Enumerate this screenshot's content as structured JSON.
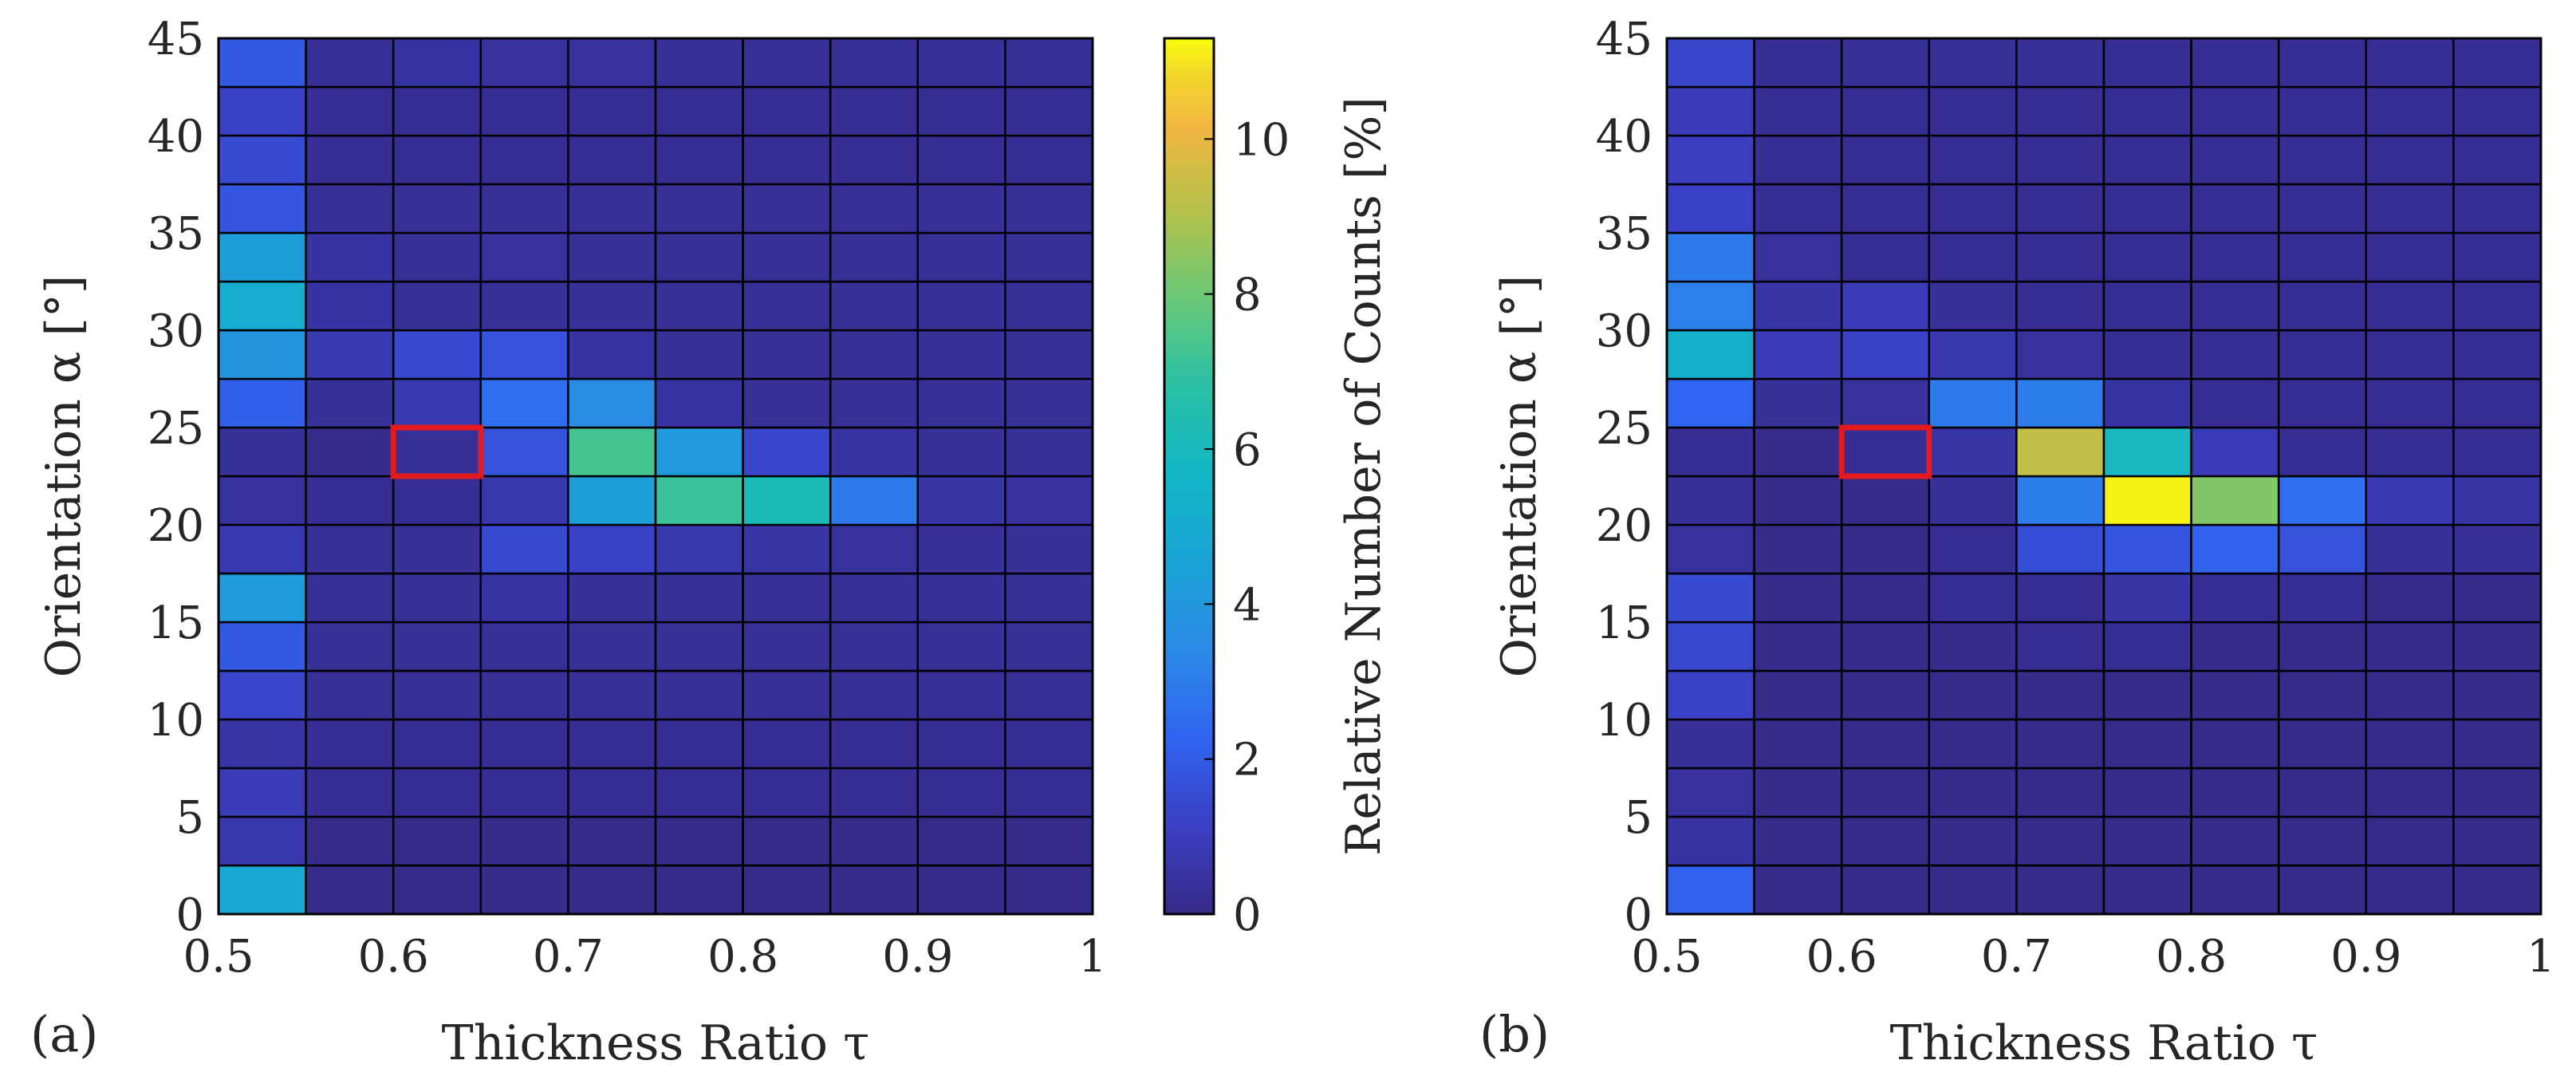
{
  "chart_data": [
    {
      "type": "heatmap",
      "panel_label": "(a)",
      "xlabel": "Thickness Ratio τ",
      "ylabel": "Orientation α [°]",
      "xlim": [
        0.5,
        1.0
      ],
      "ylim": [
        0,
        45
      ],
      "x_bin_width": 0.05,
      "y_bin_width": 2.5,
      "xticks": [
        "0.5",
        "0.6",
        "0.7",
        "0.8",
        "0.9",
        "1"
      ],
      "yticks": [
        "0",
        "5",
        "10",
        "15",
        "20",
        "25",
        "30",
        "35",
        "40",
        "45"
      ],
      "highlight": {
        "x": [
          0.6,
          0.65
        ],
        "y": [
          22.5,
          25
        ],
        "color": "#e41a1c"
      },
      "values_note": "rows from alpha 0-2.5 (bottom) to 42.5-45 (top); columns tau 0.50-0.55 ... 0.95-1.00; relative counts in %",
      "values": [
        [
          4.8,
          0.1,
          0.1,
          0.1,
          0.1,
          0.1,
          0.1,
          0.1,
          0.1,
          0.1
        ],
        [
          0.7,
          0.1,
          0.1,
          0.1,
          0.1,
          0.1,
          0.1,
          0.1,
          0.1,
          0.1
        ],
        [
          0.9,
          0.2,
          0.2,
          0.2,
          0.2,
          0.2,
          0.2,
          0.2,
          0.2,
          0.2
        ],
        [
          0.6,
          0.2,
          0.2,
          0.2,
          0.2,
          0.2,
          0.2,
          0.2,
          0.2,
          0.2
        ],
        [
          1.3,
          0.3,
          0.3,
          0.3,
          0.3,
          0.3,
          0.3,
          0.3,
          0.3,
          0.3
        ],
        [
          1.9,
          0.3,
          0.3,
          0.3,
          0.3,
          0.3,
          0.3,
          0.3,
          0.3,
          0.3
        ],
        [
          4.2,
          0.3,
          0.3,
          0.5,
          0.3,
          0.3,
          0.3,
          0.3,
          0.3,
          0.3
        ],
        [
          0.8,
          0.3,
          0.3,
          1.5,
          1.2,
          0.7,
          0.6,
          0.4,
          0.3,
          0.3
        ],
        [
          0.4,
          0.2,
          0.2,
          0.7,
          4.3,
          7.1,
          6.1,
          2.9,
          0.6,
          0.4
        ],
        [
          0.3,
          0.1,
          0.3,
          1.7,
          7.3,
          4.1,
          1.3,
          0.5,
          0.3,
          0.3
        ],
        [
          2.1,
          0.3,
          0.8,
          2.6,
          3.5,
          0.5,
          0.3,
          0.3,
          0.3,
          0.3
        ],
        [
          3.9,
          0.8,
          1.5,
          1.7,
          0.5,
          0.3,
          0.3,
          0.3,
          0.3,
          0.3
        ],
        [
          5.1,
          0.5,
          0.3,
          0.3,
          0.3,
          0.3,
          0.3,
          0.3,
          0.3,
          0.3
        ],
        [
          4.3,
          0.5,
          0.3,
          0.4,
          0.3,
          0.3,
          0.3,
          0.3,
          0.3,
          0.3
        ],
        [
          1.8,
          0.3,
          0.3,
          0.3,
          0.3,
          0.3,
          0.3,
          0.3,
          0.3,
          0.3
        ],
        [
          1.5,
          0.2,
          0.2,
          0.2,
          0.2,
          0.2,
          0.2,
          0.2,
          0.2,
          0.2
        ],
        [
          1.2,
          0.2,
          0.2,
          0.2,
          0.2,
          0.2,
          0.2,
          0.2,
          0.2,
          0.2
        ],
        [
          1.9,
          0.3,
          0.5,
          0.4,
          0.4,
          0.3,
          0.3,
          0.3,
          0.3,
          0.3
        ]
      ]
    },
    {
      "type": "heatmap",
      "panel_label": "(b)",
      "xlabel": "Thickness Ratio τ",
      "ylabel": "Orientation α [°]",
      "xlim": [
        0.5,
        1.0
      ],
      "ylim": [
        0,
        45
      ],
      "x_bin_width": 0.05,
      "y_bin_width": 2.5,
      "xticks": [
        "0.5",
        "0.6",
        "0.7",
        "0.8",
        "0.9",
        "1"
      ],
      "yticks": [
        "0",
        "5",
        "10",
        "15",
        "20",
        "25",
        "30",
        "35",
        "40",
        "45"
      ],
      "highlight": {
        "x": [
          0.6,
          0.65
        ],
        "y": [
          22.5,
          25
        ],
        "color": "#e41a1c"
      },
      "values": [
        [
          2.2,
          0.1,
          0.1,
          0.1,
          0.1,
          0.1,
          0.1,
          0.1,
          0.1,
          0.1
        ],
        [
          0.5,
          0.1,
          0.1,
          0.1,
          0.1,
          0.1,
          0.1,
          0.1,
          0.1,
          0.1
        ],
        [
          0.4,
          0.1,
          0.1,
          0.1,
          0.1,
          0.1,
          0.1,
          0.1,
          0.1,
          0.1
        ],
        [
          0.3,
          0.1,
          0.1,
          0.1,
          0.1,
          0.1,
          0.1,
          0.1,
          0.1,
          0.1
        ],
        [
          1.2,
          0.1,
          0.1,
          0.1,
          0.1,
          0.1,
          0.1,
          0.1,
          0.1,
          0.1
        ],
        [
          1.4,
          0.1,
          0.1,
          0.1,
          0.2,
          0.2,
          0.1,
          0.1,
          0.1,
          0.1
        ],
        [
          1.5,
          0.1,
          0.1,
          0.2,
          0.2,
          0.6,
          0.2,
          0.2,
          0.1,
          0.1
        ],
        [
          0.4,
          0.1,
          0.1,
          0.2,
          1.6,
          1.8,
          2.2,
          1.7,
          0.3,
          0.3
        ],
        [
          0.3,
          0.1,
          0.1,
          0.3,
          3.0,
          11.2,
          8.3,
          2.6,
          0.8,
          0.6
        ],
        [
          0.2,
          0.1,
          0.2,
          0.6,
          9.3,
          5.9,
          0.9,
          0.2,
          0.2,
          0.2
        ],
        [
          2.3,
          0.3,
          0.4,
          2.9,
          3.0,
          0.5,
          0.2,
          0.2,
          0.2,
          0.2
        ],
        [
          5.3,
          0.9,
          1.2,
          0.7,
          0.4,
          0.2,
          0.2,
          0.2,
          0.2,
          0.2
        ],
        [
          3.1,
          0.6,
          0.9,
          0.3,
          0.2,
          0.2,
          0.2,
          0.2,
          0.2,
          0.2
        ],
        [
          2.9,
          0.4,
          0.2,
          0.2,
          0.2,
          0.2,
          0.2,
          0.2,
          0.2,
          0.2
        ],
        [
          1.2,
          0.2,
          0.2,
          0.2,
          0.2,
          0.2,
          0.2,
          0.2,
          0.2,
          0.2
        ],
        [
          1.1,
          0.2,
          0.2,
          0.2,
          0.2,
          0.2,
          0.2,
          0.2,
          0.2,
          0.2
        ],
        [
          0.9,
          0.2,
          0.2,
          0.2,
          0.2,
          0.2,
          0.2,
          0.2,
          0.2,
          0.2
        ],
        [
          1.3,
          0.2,
          0.3,
          0.3,
          0.3,
          0.2,
          0.2,
          0.2,
          0.2,
          0.2
        ]
      ]
    }
  ],
  "colorbar": {
    "label": "Relative Number of Counts [%]",
    "range": [
      0,
      11.3
    ],
    "ticks": [
      "0",
      "2",
      "4",
      "6",
      "8",
      "10"
    ],
    "colormap": "parula",
    "colormap_stops": [
      [
        0.0,
        "#352a87"
      ],
      [
        0.1,
        "#3b3fc3"
      ],
      [
        0.2,
        "#2f64f0"
      ],
      [
        0.3,
        "#2b8ae6"
      ],
      [
        0.4,
        "#1aa3d6"
      ],
      [
        0.5,
        "#12b6c6"
      ],
      [
        0.6,
        "#28c0a6"
      ],
      [
        0.7,
        "#67c97a"
      ],
      [
        0.8,
        "#b2c24b"
      ],
      [
        0.9,
        "#f2b640"
      ],
      [
        0.96,
        "#f3d92a"
      ],
      [
        1.0,
        "#f9fb0e"
      ]
    ]
  },
  "colors": {
    "cell_border": "#000000",
    "highlight": "#e41a1c"
  }
}
